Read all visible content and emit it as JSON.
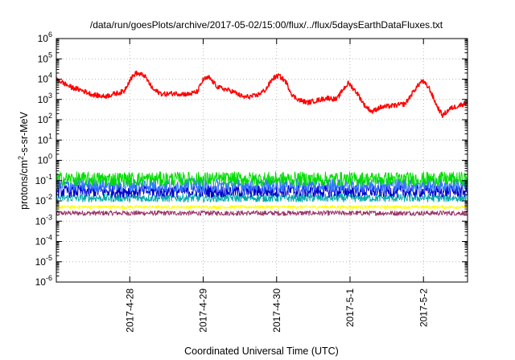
{
  "chart_data": {
    "type": "line",
    "title": "/data/run/goesPlots/archive/2017-05-02/15:00/flux/../flux/5daysEarthDataFluxes.txt",
    "xlabel": "Coordinated Universal Time (UTC)",
    "ylabel": "protons/cm²-s-sr-MeV",
    "ylabel_parts": {
      "pre": "protons/cm",
      "sup": "2",
      "post": "-s-sr-MeV"
    },
    "y_scale": "log",
    "ylim": [
      1e-06,
      1000000.0
    ],
    "y_ticks": [
      {
        "exp": "-6"
      },
      {
        "exp": "-5"
      },
      {
        "exp": "-4"
      },
      {
        "exp": "-3"
      },
      {
        "exp": "-2"
      },
      {
        "exp": "-1"
      },
      {
        "exp": "0"
      },
      {
        "exp": "1"
      },
      {
        "exp": "2"
      },
      {
        "exp": "3"
      },
      {
        "exp": "4"
      },
      {
        "exp": "5"
      },
      {
        "exp": "6"
      }
    ],
    "y_tick_base": "10",
    "x_range_days": [
      0,
      5.6
    ],
    "x_ticks": [
      {
        "label": "2017-4-28",
        "day": 1.0
      },
      {
        "label": "2017-4-29",
        "day": 2.0
      },
      {
        "label": "2017-4-30",
        "day": 3.0
      },
      {
        "label": "2017-5-1",
        "day": 4.0
      },
      {
        "label": "2017-5-2",
        "day": 5.0
      }
    ],
    "grid": true,
    "legend": "none",
    "series": [
      {
        "color": "#ff0000",
        "noise": 0.12,
        "points": [
          [
            0.0,
            10000
          ],
          [
            0.2,
            4000
          ],
          [
            0.35,
            2800
          ],
          [
            0.5,
            1700
          ],
          [
            0.65,
            1400
          ],
          [
            0.8,
            1900
          ],
          [
            0.92,
            2500
          ],
          [
            1.0,
            9000
          ],
          [
            1.08,
            20000
          ],
          [
            1.2,
            15000
          ],
          [
            1.32,
            3000
          ],
          [
            1.45,
            1800
          ],
          [
            1.6,
            2000
          ],
          [
            1.8,
            1800
          ],
          [
            1.92,
            2400
          ],
          [
            2.0,
            9500
          ],
          [
            2.08,
            12000
          ],
          [
            2.2,
            4000
          ],
          [
            2.4,
            2500
          ],
          [
            2.55,
            1300
          ],
          [
            2.72,
            1500
          ],
          [
            2.85,
            3000
          ],
          [
            2.95,
            11000
          ],
          [
            3.03,
            15000
          ],
          [
            3.12,
            8000
          ],
          [
            3.22,
            1500
          ],
          [
            3.32,
            900
          ],
          [
            3.42,
            700
          ],
          [
            3.55,
            900
          ],
          [
            3.7,
            1200
          ],
          [
            3.82,
            1000
          ],
          [
            3.9,
            3000
          ],
          [
            3.98,
            6500
          ],
          [
            4.1,
            2000
          ],
          [
            4.2,
            500
          ],
          [
            4.3,
            250
          ],
          [
            4.4,
            400
          ],
          [
            4.6,
            500
          ],
          [
            4.75,
            600
          ],
          [
            4.88,
            3000
          ],
          [
            4.98,
            8500
          ],
          [
            5.08,
            3500
          ],
          [
            5.18,
            500
          ],
          [
            5.26,
            160
          ],
          [
            5.36,
            350
          ],
          [
            5.48,
            500
          ],
          [
            5.6,
            700
          ]
        ]
      },
      {
        "color": "#00dd00",
        "base": 0.12,
        "noise": 0.35
      },
      {
        "color": "#3377ff",
        "base": 0.06,
        "noise": 0.35
      },
      {
        "color": "#0000cc",
        "base": 0.03,
        "noise": 0.3
      },
      {
        "color": "#00aaaa",
        "base": 0.014,
        "noise": 0.2
      },
      {
        "color": "#ffff00",
        "base": 0.005,
        "noise": 0.08
      },
      {
        "color": "#993366",
        "base": 0.0025,
        "noise": 0.12
      }
    ]
  }
}
